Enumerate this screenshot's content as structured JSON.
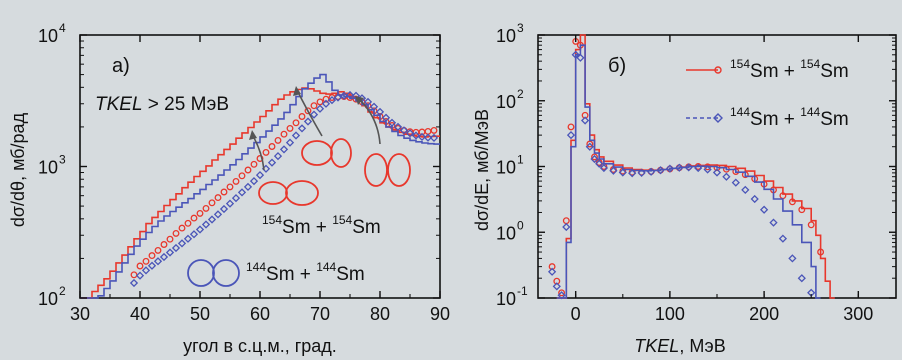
{
  "colors": {
    "background": "#d6dbde",
    "red": "#e8372c",
    "blue": "#4a55b8",
    "axis": "#111111",
    "arrow": "#555555"
  },
  "chart_data": [
    {
      "panel_label": "а)",
      "type": "line",
      "xscale": "linear",
      "yscale": "log",
      "xlabel": "угол в с.ц.м., град.",
      "ylabel": "dσ/dθ, мб/рад",
      "xlim": [
        30,
        90
      ],
      "ylim": [
        100,
        10000
      ],
      "xticks": [
        30,
        40,
        50,
        60,
        70,
        80,
        90
      ],
      "xticklabels": [
        "30",
        "40",
        "50",
        "60",
        "70",
        "80",
        "90"
      ],
      "yticks": [
        100,
        1000,
        10000
      ],
      "yticklabels": [
        "10",
        "10",
        "10"
      ],
      "ytick_exponents": [
        "2",
        "3",
        "4"
      ],
      "annotation": {
        "italic": "TKEL",
        "rest": " > 25 МэВ"
      },
      "series": [
        {
          "name": "¹⁵⁴Sm + ¹⁵⁴Sm",
          "label_sup1": "154",
          "label_base1": "Sm + ",
          "label_sup2": "154",
          "label_base2": "Sm",
          "color": "#e8372c",
          "style": "step",
          "x": [
            30,
            31,
            32,
            33,
            34,
            35,
            36,
            37,
            38,
            39,
            40,
            41,
            42,
            43,
            44,
            45,
            46,
            47,
            48,
            49,
            50,
            51,
            52,
            53,
            54,
            55,
            56,
            57,
            58,
            59,
            60,
            61,
            62,
            63,
            64,
            65,
            66,
            67,
            68,
            69,
            70,
            71,
            72,
            73,
            74,
            75,
            76,
            77,
            78,
            79,
            80,
            81,
            82,
            83,
            84,
            85,
            86,
            87,
            88,
            89
          ],
          "y": [
            100,
            100,
            112,
            125,
            140,
            160,
            185,
            212,
            245,
            282,
            320,
            368,
            410,
            455,
            505,
            560,
            620,
            690,
            760,
            840,
            920,
            1010,
            1120,
            1230,
            1350,
            1480,
            1640,
            1800,
            1980,
            2180,
            2400,
            2650,
            2950,
            3250,
            3500,
            3700,
            3850,
            3950,
            3900,
            3750,
            3600,
            3550,
            3600,
            3700,
            3600,
            3400,
            3150,
            2900,
            2600,
            2350,
            2150,
            2000,
            1900,
            1820,
            1760,
            1720,
            1690,
            1680,
            1690,
            1700
          ]
        },
        {
          "name": "¹⁵⁴Sm + ¹⁵⁴Sm (symbols)",
          "color": "#e8372c",
          "style": "circles",
          "x": [
            39,
            40,
            41,
            42,
            43,
            44,
            45,
            46,
            47,
            48,
            49,
            50,
            51,
            52,
            53,
            54,
            55,
            56,
            57,
            58,
            59,
            60,
            61,
            62,
            63,
            64,
            65,
            66,
            67,
            68,
            69,
            70,
            71,
            72,
            73,
            74,
            75,
            76,
            77,
            78,
            79,
            80,
            81,
            82,
            83,
            84,
            85,
            86,
            87,
            88,
            89
          ],
          "y": [
            150,
            175,
            190,
            210,
            230,
            255,
            280,
            310,
            340,
            370,
            405,
            440,
            480,
            530,
            580,
            640,
            700,
            770,
            850,
            940,
            1040,
            1150,
            1280,
            1420,
            1580,
            1760,
            1950,
            2150,
            2400,
            2650,
            2900,
            3100,
            3250,
            3350,
            3400,
            3400,
            3350,
            3250,
            3100,
            2900,
            2650,
            2400,
            2200,
            2050,
            1950,
            1880,
            1840,
            1820,
            1830,
            1850,
            1880
          ]
        },
        {
          "name": "¹⁴⁴Sm + ¹⁴⁴Sm",
          "label_sup1": "144",
          "label_base1": "Sm + ",
          "label_sup2": "144",
          "label_base2": "Sm",
          "color": "#4a55b8",
          "style": "step",
          "x": [
            30,
            31,
            32,
            33,
            34,
            35,
            36,
            37,
            38,
            39,
            40,
            41,
            42,
            43,
            44,
            45,
            46,
            47,
            48,
            49,
            50,
            51,
            52,
            53,
            54,
            55,
            56,
            57,
            58,
            59,
            60,
            61,
            62,
            63,
            64,
            65,
            66,
            67,
            68,
            69,
            70,
            71,
            72,
            73,
            74,
            75,
            76,
            77,
            78,
            79,
            80,
            81,
            82,
            83,
            84,
            85,
            86,
            87,
            88,
            89
          ],
          "y": [
            100,
            100,
            100,
            104,
            118,
            135,
            158,
            185,
            215,
            248,
            280,
            315,
            350,
            385,
            420,
            455,
            490,
            530,
            570,
            620,
            670,
            730,
            790,
            860,
            940,
            1030,
            1130,
            1250,
            1380,
            1520,
            1680,
            1860,
            2060,
            2300,
            2580,
            2950,
            3400,
            3900,
            4300,
            4700,
            5000,
            4400,
            3800,
            3500,
            3400,
            3300,
            3150,
            2950,
            2700,
            2450,
            2200,
            2000,
            1850,
            1720,
            1640,
            1580,
            1540,
            1510,
            1490,
            1480
          ]
        },
        {
          "name": "¹⁴⁴Sm + ¹⁴⁴Sm (symbols)",
          "color": "#4a55b8",
          "style": "diamonds",
          "x": [
            39,
            40,
            41,
            42,
            43,
            44,
            45,
            46,
            47,
            48,
            49,
            50,
            51,
            52,
            53,
            54,
            55,
            56,
            57,
            58,
            59,
            60,
            61,
            62,
            63,
            64,
            65,
            66,
            67,
            68,
            69,
            70,
            71,
            72,
            73,
            74,
            75,
            76,
            77,
            78,
            79,
            80,
            81,
            82,
            83,
            84,
            85,
            86,
            87,
            88,
            89
          ],
          "y": [
            130,
            148,
            162,
            176,
            190,
            205,
            222,
            240,
            260,
            282,
            305,
            332,
            362,
            395,
            432,
            475,
            522,
            575,
            635,
            700,
            775,
            860,
            960,
            1070,
            1200,
            1350,
            1520,
            1720,
            1950,
            2200,
            2480,
            2750,
            3000,
            3200,
            3350,
            3450,
            3500,
            3450,
            3300,
            3100,
            2850,
            2600,
            2350,
            2150,
            2000,
            1880,
            1790,
            1720,
            1680,
            1660,
            1650
          ]
        }
      ]
    },
    {
      "panel_label": "б)",
      "type": "line",
      "xscale": "linear",
      "yscale": "log",
      "xlabel": "TKEL, МэВ",
      "xlabel_italic": "TKEL",
      "xlabel_rest": ", МэВ",
      "ylabel": "dσ/dE, мб/МэВ",
      "xlim": [
        -40,
        340
      ],
      "ylim": [
        0.1,
        1000
      ],
      "xticks": [
        0,
        100,
        200,
        300
      ],
      "xticklabels": [
        "0",
        "100",
        "200",
        "300"
      ],
      "yticks": [
        0.1,
        1,
        10,
        100,
        1000
      ],
      "yticklabels": [
        "10",
        "10",
        "10",
        "10",
        "10"
      ],
      "ytick_exponents": [
        "-1",
        "0",
        "1",
        "2",
        "3"
      ],
      "legend_position": "top-right",
      "series": [
        {
          "name": "¹⁵⁴Sm + ¹⁵⁴Sm",
          "label_sup1": "154",
          "label_base1": "Sm + ",
          "label_sup2": "154",
          "label_base2": "Sm",
          "color": "#e8372c",
          "style": "step",
          "x": [
            -20,
            -15,
            -10,
            -5,
            0,
            5,
            10,
            15,
            20,
            25,
            30,
            40,
            50,
            60,
            70,
            80,
            90,
            100,
            110,
            120,
            130,
            140,
            150,
            160,
            170,
            180,
            190,
            200,
            210,
            220,
            230,
            240,
            250,
            255,
            260,
            265,
            270
          ],
          "y": [
            0.1,
            0.1,
            0.8,
            25,
            600,
            1000,
            90,
            30,
            18,
            14,
            12,
            10.5,
            9.5,
            9,
            8.8,
            8.8,
            9,
            9.4,
            9.8,
            10.2,
            10.4,
            10.5,
            10.4,
            10,
            9.4,
            8.5,
            7.3,
            6,
            4.8,
            3.8,
            3,
            2.3,
            1.5,
            0.9,
            0.4,
            0.18,
            0.1
          ]
        },
        {
          "name": "¹⁵⁴Sm + ¹⁵⁴Sm (symbols)",
          "color": "#e8372c",
          "style": "circles",
          "x": [
            -25,
            -20,
            -15,
            -10,
            -5,
            0,
            5,
            10,
            15,
            20,
            25,
            30,
            40,
            50,
            60,
            70,
            80,
            90,
            100,
            110,
            120,
            130,
            140,
            150,
            160,
            170,
            180,
            190,
            200,
            210,
            220,
            230,
            240,
            250,
            260
          ],
          "y": [
            0.3,
            0.18,
            0.12,
            1.5,
            40,
            800,
            700,
            60,
            22,
            14,
            11.5,
            10,
            9,
            8.5,
            8.2,
            8.2,
            8.4,
            8.8,
            9.2,
            9.6,
            9.9,
            10,
            9.9,
            9.6,
            9.1,
            8.4,
            7.5,
            6.5,
            5.4,
            4.4,
            3.6,
            2.9,
            2.2,
            1.3,
            0.5
          ]
        },
        {
          "name": "¹⁴⁴Sm + ¹⁴⁴Sm",
          "label_sup1": "144",
          "label_base1": "Sm + ",
          "label_sup2": "144",
          "label_base2": "Sm",
          "color": "#4a55b8",
          "style": "step",
          "x": [
            -20,
            -15,
            -10,
            -5,
            0,
            5,
            10,
            15,
            20,
            25,
            30,
            40,
            50,
            60,
            70,
            80,
            90,
            100,
            110,
            120,
            130,
            140,
            150,
            160,
            170,
            180,
            190,
            200,
            210,
            220,
            230,
            240,
            250,
            255
          ],
          "y": [
            0.1,
            0.1,
            0.7,
            20,
            500,
            700,
            80,
            25,
            16,
            13,
            11,
            9.8,
            9,
            8.7,
            8.6,
            8.7,
            9,
            9.4,
            9.7,
            10,
            10.1,
            10,
            9.6,
            9,
            8.2,
            7.1,
            5.8,
            4.5,
            3.2,
            2.1,
            1.3,
            0.7,
            0.3,
            0.1
          ]
        },
        {
          "name": "¹⁴⁴Sm + ¹⁴⁴Sm (symbols)",
          "color": "#4a55b8",
          "style": "diamonds",
          "x": [
            -25,
            -20,
            -15,
            -10,
            -5,
            0,
            5,
            10,
            15,
            20,
            25,
            30,
            40,
            50,
            60,
            70,
            80,
            90,
            100,
            110,
            120,
            130,
            140,
            150,
            160,
            170,
            180,
            190,
            200,
            210,
            220,
            230,
            240,
            250
          ],
          "y": [
            0.25,
            0.15,
            0.11,
            1.2,
            30,
            500,
            450,
            50,
            20,
            13,
            11,
            9.5,
            8.6,
            8.1,
            7.9,
            8,
            8.3,
            8.8,
            9.3,
            9.6,
            9.7,
            9.5,
            9,
            8.1,
            7,
            5.7,
            4.4,
            3.2,
            2.2,
            1.4,
            0.8,
            0.4,
            0.2,
            0.12
          ]
        }
      ]
    }
  ]
}
